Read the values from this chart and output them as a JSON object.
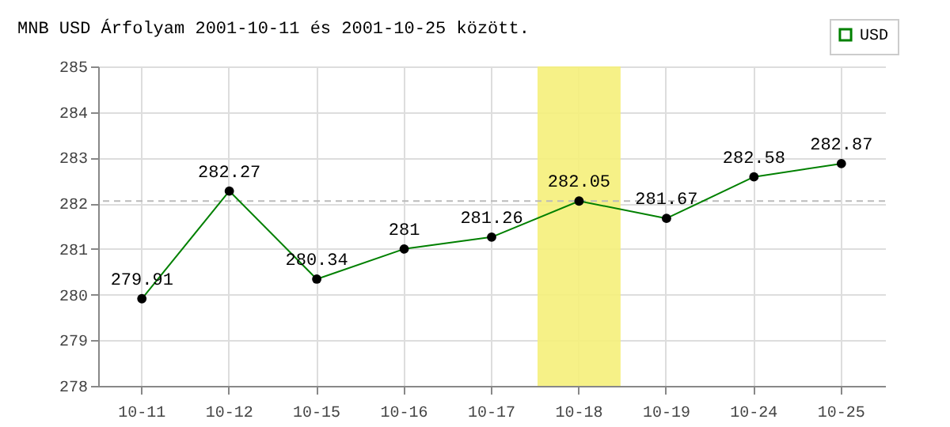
{
  "chart_data": {
    "type": "line",
    "title": "MNB USD Árfolyam 2001-10-11 és 2001-10-25 között.",
    "categories": [
      "10-11",
      "10-12",
      "10-15",
      "10-16",
      "10-17",
      "10-18",
      "10-19",
      "10-24",
      "10-25"
    ],
    "series": [
      {
        "name": "USD",
        "color": "#008000",
        "values": [
          279.91,
          282.27,
          280.34,
          281,
          281.26,
          282.05,
          281.67,
          282.58,
          282.87
        ]
      }
    ],
    "ylim": [
      278,
      285
    ],
    "yticks": [
      278,
      279,
      280,
      281,
      282,
      283,
      284,
      285
    ],
    "ref_lines": [
      {
        "axis": "y",
        "value": 282.05,
        "color": "#bbbbbb",
        "line_style": "dashed"
      }
    ],
    "bands": [
      {
        "axis": "x",
        "from": "10-18",
        "to": "10-18",
        "color": "#f5f07a"
      }
    ],
    "grid": true,
    "legend": "top right",
    "marker": "circle",
    "line_style": "solid",
    "data_labels": true
  }
}
